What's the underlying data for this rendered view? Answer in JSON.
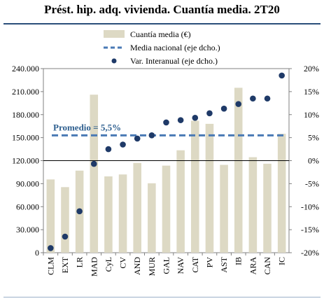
{
  "title": "Prést. hip. adq. vivienda. Cuantía media. 2T20",
  "chart_data": {
    "type": "bar",
    "categories": [
      "CLM",
      "EXT",
      "LR",
      "MAD",
      "CyL",
      "CV",
      "AND",
      "MUR",
      "GAL",
      "NAV",
      "CAT",
      "PV",
      "AST",
      "IB",
      "ARA",
      "CAN",
      "IC"
    ],
    "series": [
      {
        "name": "Cuantía media (€)",
        "type": "bar",
        "axis": "left",
        "values": [
          95500,
          85500,
          107000,
          206000,
          99500,
          102000,
          117000,
          90500,
          113500,
          133500,
          172000,
          168000,
          114500,
          215000,
          124500,
          116000,
          155000
        ]
      },
      {
        "name": "Media nacional (eje dcho.)",
        "type": "line",
        "axis": "right",
        "value": 5.5
      },
      {
        "name": "Var. Interanual (eje dcho.)",
        "type": "scatter",
        "axis": "right",
        "values": [
          -19.0,
          -16.5,
          -11.0,
          -0.7,
          2.5,
          3.5,
          4.8,
          5.5,
          8.3,
          8.8,
          9.3,
          10.3,
          11.3,
          12.3,
          13.5,
          13.5,
          18.5
        ]
      }
    ],
    "left_axis": {
      "min": 0,
      "max": 240000,
      "ticks": [
        "0",
        "30.000",
        "60.000",
        "90.000",
        "120.000",
        "150.000",
        "180.000",
        "210.000",
        "240.000"
      ]
    },
    "right_axis": {
      "min": -20,
      "max": 20,
      "ticks": [
        "-20%",
        "-15%",
        "-10%",
        "-5%",
        "0%",
        "5%",
        "10%",
        "15%",
        "20%"
      ]
    },
    "annotation": "Promedio = 5,5%",
    "legend_position": "top-center",
    "colors": {
      "bar": "#ddd9c4",
      "line": "#4a7ab5",
      "dot": "#1f3a68"
    }
  }
}
